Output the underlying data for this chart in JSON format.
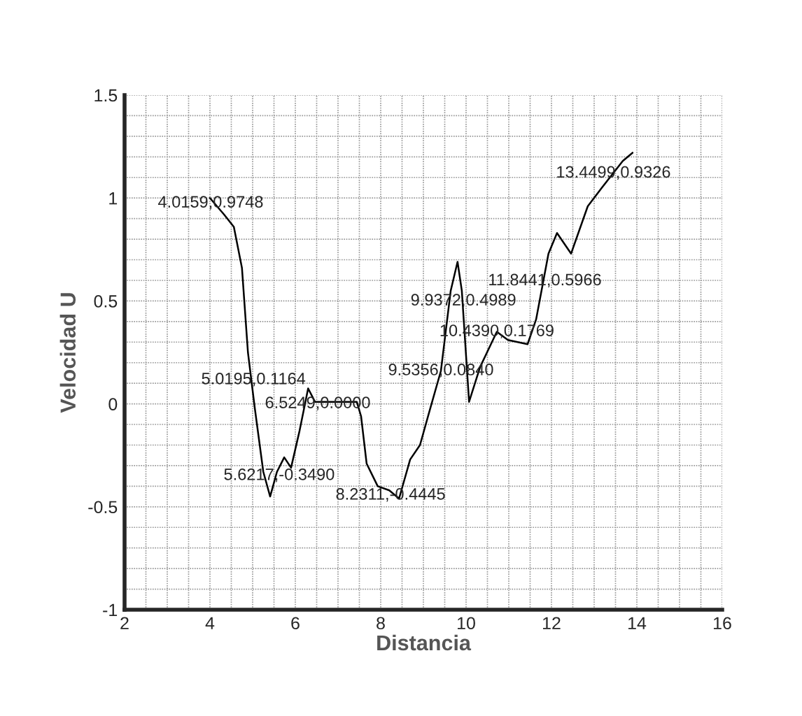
{
  "chart_data": {
    "type": "line",
    "xlabel": "Distancia",
    "ylabel": "Velocidad U",
    "xlim": [
      2,
      16
    ],
    "ylim": [
      -1,
      1.5
    ],
    "xticks": [
      2,
      4,
      6,
      8,
      10,
      12,
      14,
      16
    ],
    "yticks": [
      -1,
      -0.5,
      0,
      0.5,
      1,
      1.5
    ],
    "grid": true,
    "series": [
      {
        "color": "#000000",
        "x": [
          4.0,
          4.33,
          4.56,
          4.75,
          4.89,
          5.05,
          5.25,
          5.41,
          5.57,
          5.74,
          5.9,
          6.1,
          6.3,
          6.46,
          7.44,
          7.54,
          7.67,
          7.93,
          8.2,
          8.43,
          8.69,
          8.92,
          9.15,
          9.41,
          9.64,
          9.8,
          9.9,
          10.07,
          10.33,
          10.72,
          10.98,
          11.44,
          11.64,
          11.93,
          12.13,
          12.46,
          12.85,
          13.18,
          13.67,
          13.9
        ],
        "values": [
          1.0,
          0.92,
          0.86,
          0.66,
          0.25,
          -0.02,
          -0.33,
          -0.45,
          -0.33,
          -0.26,
          -0.31,
          -0.13,
          0.075,
          0.01,
          0.01,
          -0.06,
          -0.29,
          -0.4,
          -0.42,
          -0.46,
          -0.27,
          -0.2,
          -0.03,
          0.16,
          0.55,
          0.69,
          0.55,
          0.01,
          0.18,
          0.35,
          0.31,
          0.29,
          0.41,
          0.73,
          0.83,
          0.73,
          0.96,
          1.05,
          1.18,
          1.22
        ]
      }
    ],
    "annotations": [
      {
        "text": "4.0159,0.9748",
        "x": 4.0159,
        "y": 0.9748
      },
      {
        "text": "5.0195,0.1164",
        "x": 5.0195,
        "y": 0.1164
      },
      {
        "text": "6.5249,0.0000",
        "x": 6.5249,
        "y": 0.0
      },
      {
        "text": "5.6217,-0.3490",
        "x": 5.6217,
        "y": -0.349
      },
      {
        "text": "8.2311,-0.4445",
        "x": 8.2311,
        "y": -0.4445
      },
      {
        "text": "9.5356,0.0840",
        "x": 9.41,
        "y": 0.16
      },
      {
        "text": "10.4390,0.1769",
        "x": 10.72,
        "y": 0.35
      },
      {
        "text": "9.9372,0.4989",
        "x": 9.9372,
        "y": 0.4989
      },
      {
        "text": "11.8441,0.5966",
        "x": 11.8441,
        "y": 0.5966
      },
      {
        "text": "13.4499,0.9326",
        "x": 13.45,
        "y": 1.12
      }
    ]
  }
}
